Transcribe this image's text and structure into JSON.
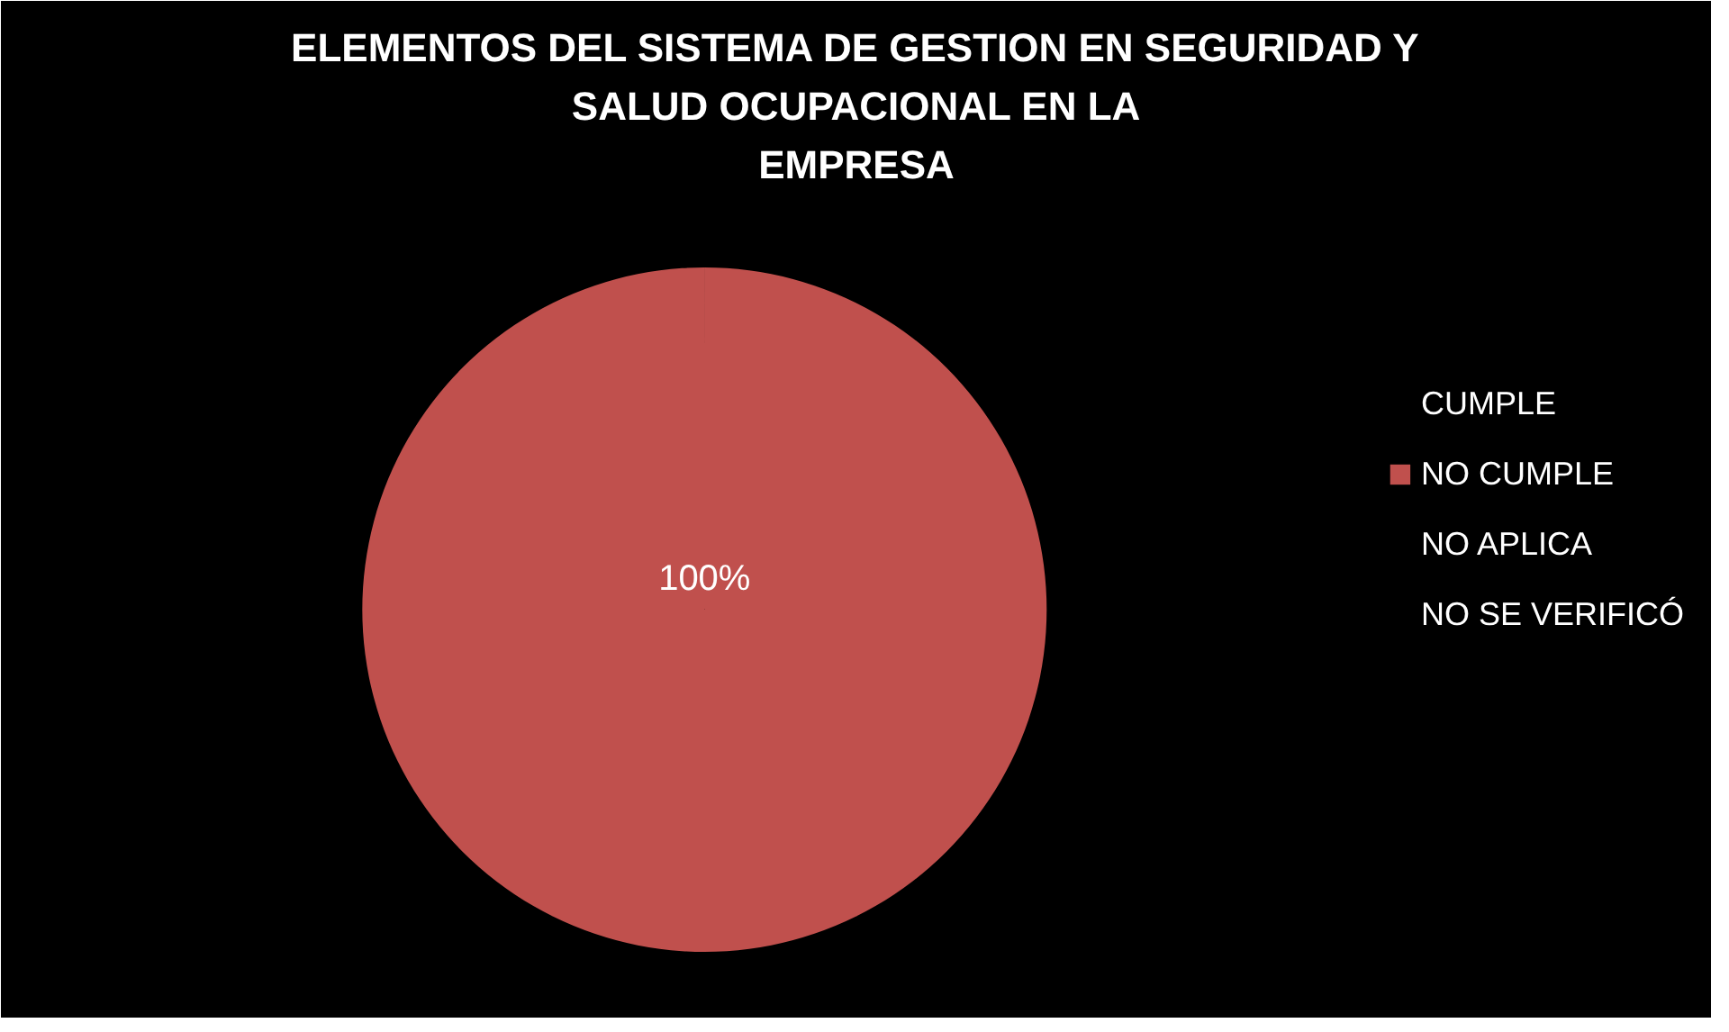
{
  "chart_data": {
    "type": "pie",
    "title": "ELEMENTOS DEL SISTEMA DE GESTION EN SEGURIDAD Y\nSALUD OCUPACIONAL EN LA\nEMPRESA",
    "categories": [
      "CUMPLE",
      "NO CUMPLE",
      "NO APLICA",
      "NO SE VERIFICÓ"
    ],
    "values": [
      0,
      100,
      0,
      0
    ],
    "colors": [
      "#4f81bd",
      "#c0504d",
      "#9bbb59",
      "#8064a2"
    ],
    "value_labels": [
      null,
      "100%",
      null,
      null
    ],
    "legend": "right"
  }
}
